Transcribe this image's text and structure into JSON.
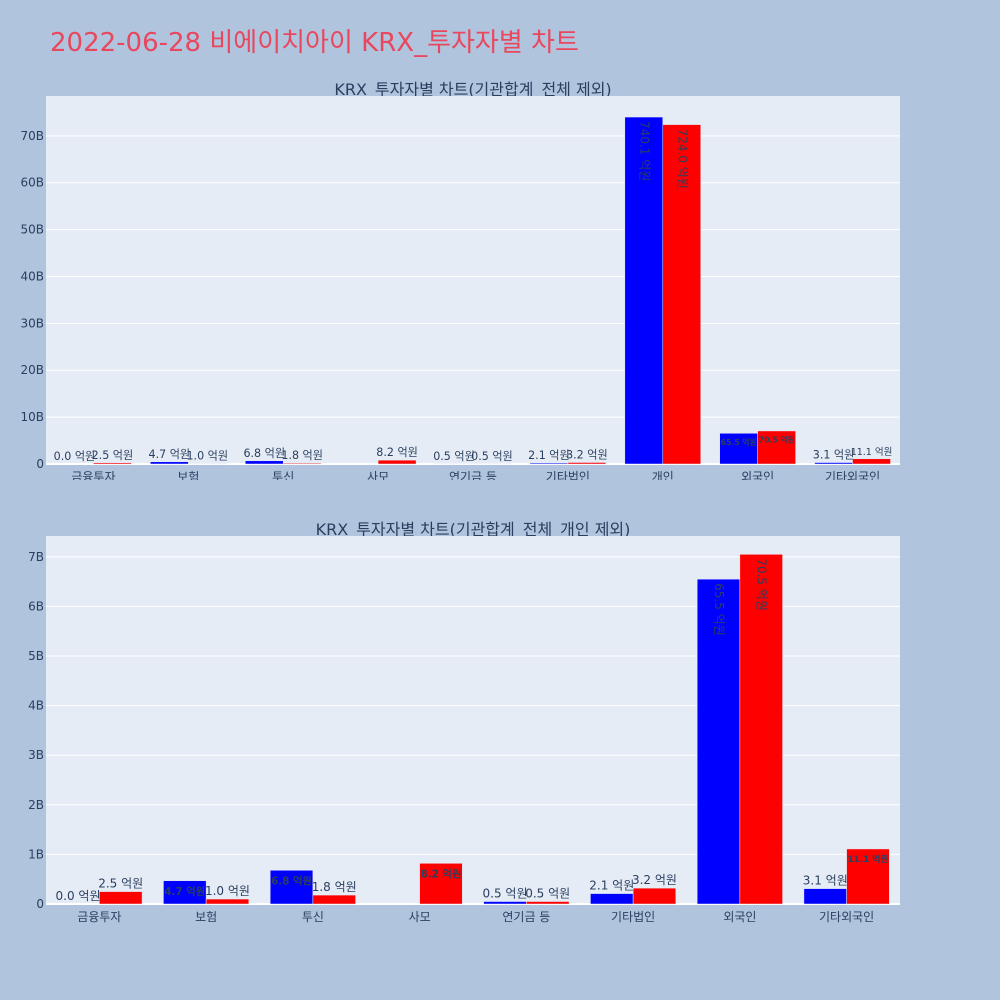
{
  "page": {
    "title": "2022-06-28 비에이치아이 KRX_투자자별 차트"
  },
  "colors": {
    "buy": "#0000ff",
    "sell": "#ff0000",
    "title": "#e8475d",
    "background": "#b0c4de",
    "plot": "#e5ecf6"
  },
  "chart_data": [
    {
      "type": "bar",
      "title": "KRX_투자자별 차트(기관합계_전체 제외)",
      "categories": [
        "금융투자",
        "보험",
        "투신",
        "사모",
        "연기금 등",
        "기타법인",
        "개인",
        "외국인",
        "기타외국인"
      ],
      "series": [
        {
          "values": [
            0.0,
            0.47,
            0.68,
            0,
            0.05,
            0.21,
            74.01,
            6.55,
            0.31
          ],
          "labels": [
            "0.0 억원",
            "4.7 억원",
            "6.8 억원",
            "",
            "0.5 억원",
            "2.1 억원",
            "740.1 억원",
            "65.5 억원",
            "3.1 억원"
          ]
        },
        {
          "values": [
            0.25,
            0.1,
            0.18,
            0.82,
            0.05,
            0.32,
            72.4,
            7.05,
            1.11
          ],
          "labels": [
            "2.5 억원",
            "1.0 억원",
            "1.8 억원",
            "8.2 억원",
            "0.5 억원",
            "3.2 억원",
            "724.0 억원",
            "70.5 억원",
            "11.1 억원"
          ]
        }
      ],
      "yticks": [
        0,
        10,
        20,
        30,
        40,
        50,
        60,
        70
      ],
      "ytick_labels": [
        "0",
        "10B",
        "20B",
        "30B",
        "40B",
        "50B",
        "60B",
        "70B"
      ],
      "ylim": [
        0,
        78.5
      ],
      "grid": true,
      "legend": "none"
    },
    {
      "type": "bar",
      "title": "KRX_투자자별 차트(기관합계_전체_개인 제외)",
      "categories": [
        "금융투자",
        "보험",
        "투신",
        "사모",
        "연기금 등",
        "기타법인",
        "외국인",
        "기타외국인"
      ],
      "series": [
        {
          "values": [
            0.0,
            0.47,
            0.68,
            0,
            0.05,
            0.21,
            6.55,
            0.31
          ],
          "labels": [
            "0.0 억원",
            "4.7 억원",
            "6.8 억원",
            "",
            "0.5 억원",
            "2.1 억원",
            "65.5 억원",
            "3.1 억원"
          ]
        },
        {
          "values": [
            0.25,
            0.1,
            0.18,
            0.82,
            0.05,
            0.32,
            7.05,
            1.11
          ],
          "labels": [
            "2.5 억원",
            "1.0 억원",
            "1.8 억원",
            "8.2 억원",
            "0.5 억원",
            "3.2 억원",
            "70.5 억원",
            "11.1 억원"
          ]
        }
      ],
      "yticks": [
        0,
        1,
        2,
        3,
        4,
        5,
        6,
        7
      ],
      "ytick_labels": [
        "0",
        "1B",
        "2B",
        "3B",
        "4B",
        "5B",
        "6B",
        "7B"
      ],
      "ylim": [
        0,
        7.42
      ],
      "grid": true,
      "legend": "none"
    }
  ]
}
